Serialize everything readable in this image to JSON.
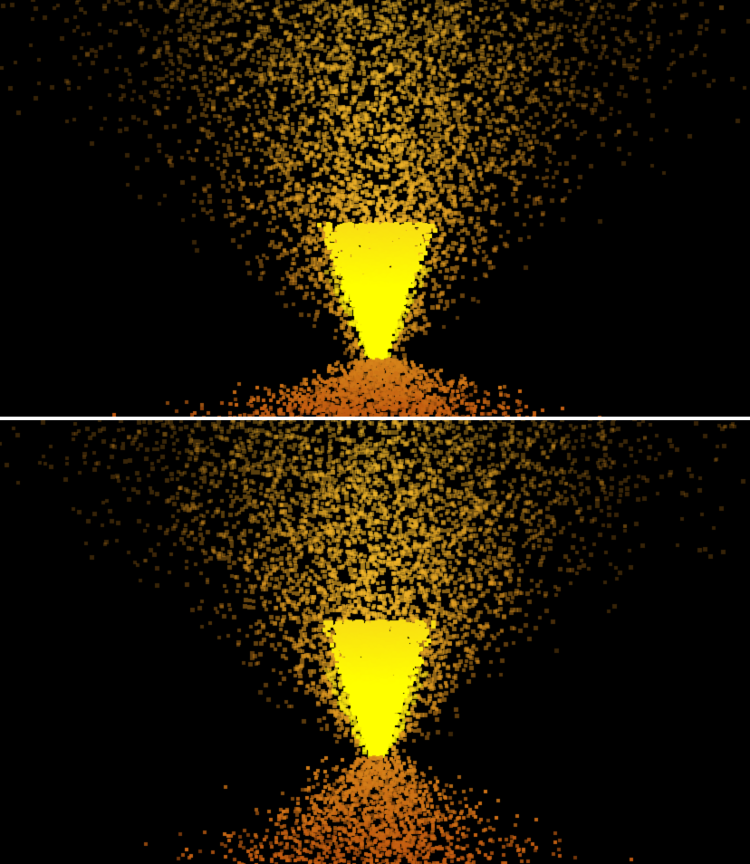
{
  "scene": {
    "description_free": true,
    "panels": [
      {
        "id": "top",
        "particle_count": 5200,
        "seed": 1337
      },
      {
        "id": "bottom",
        "particle_count": 5200,
        "seed": 4242
      }
    ],
    "colors": {
      "background": "#000000",
      "divider": "#ffffff",
      "core": "#ffff00",
      "mid": "#f2b82a",
      "outer": "#d98a1c",
      "ember": "#c25a10"
    }
  }
}
